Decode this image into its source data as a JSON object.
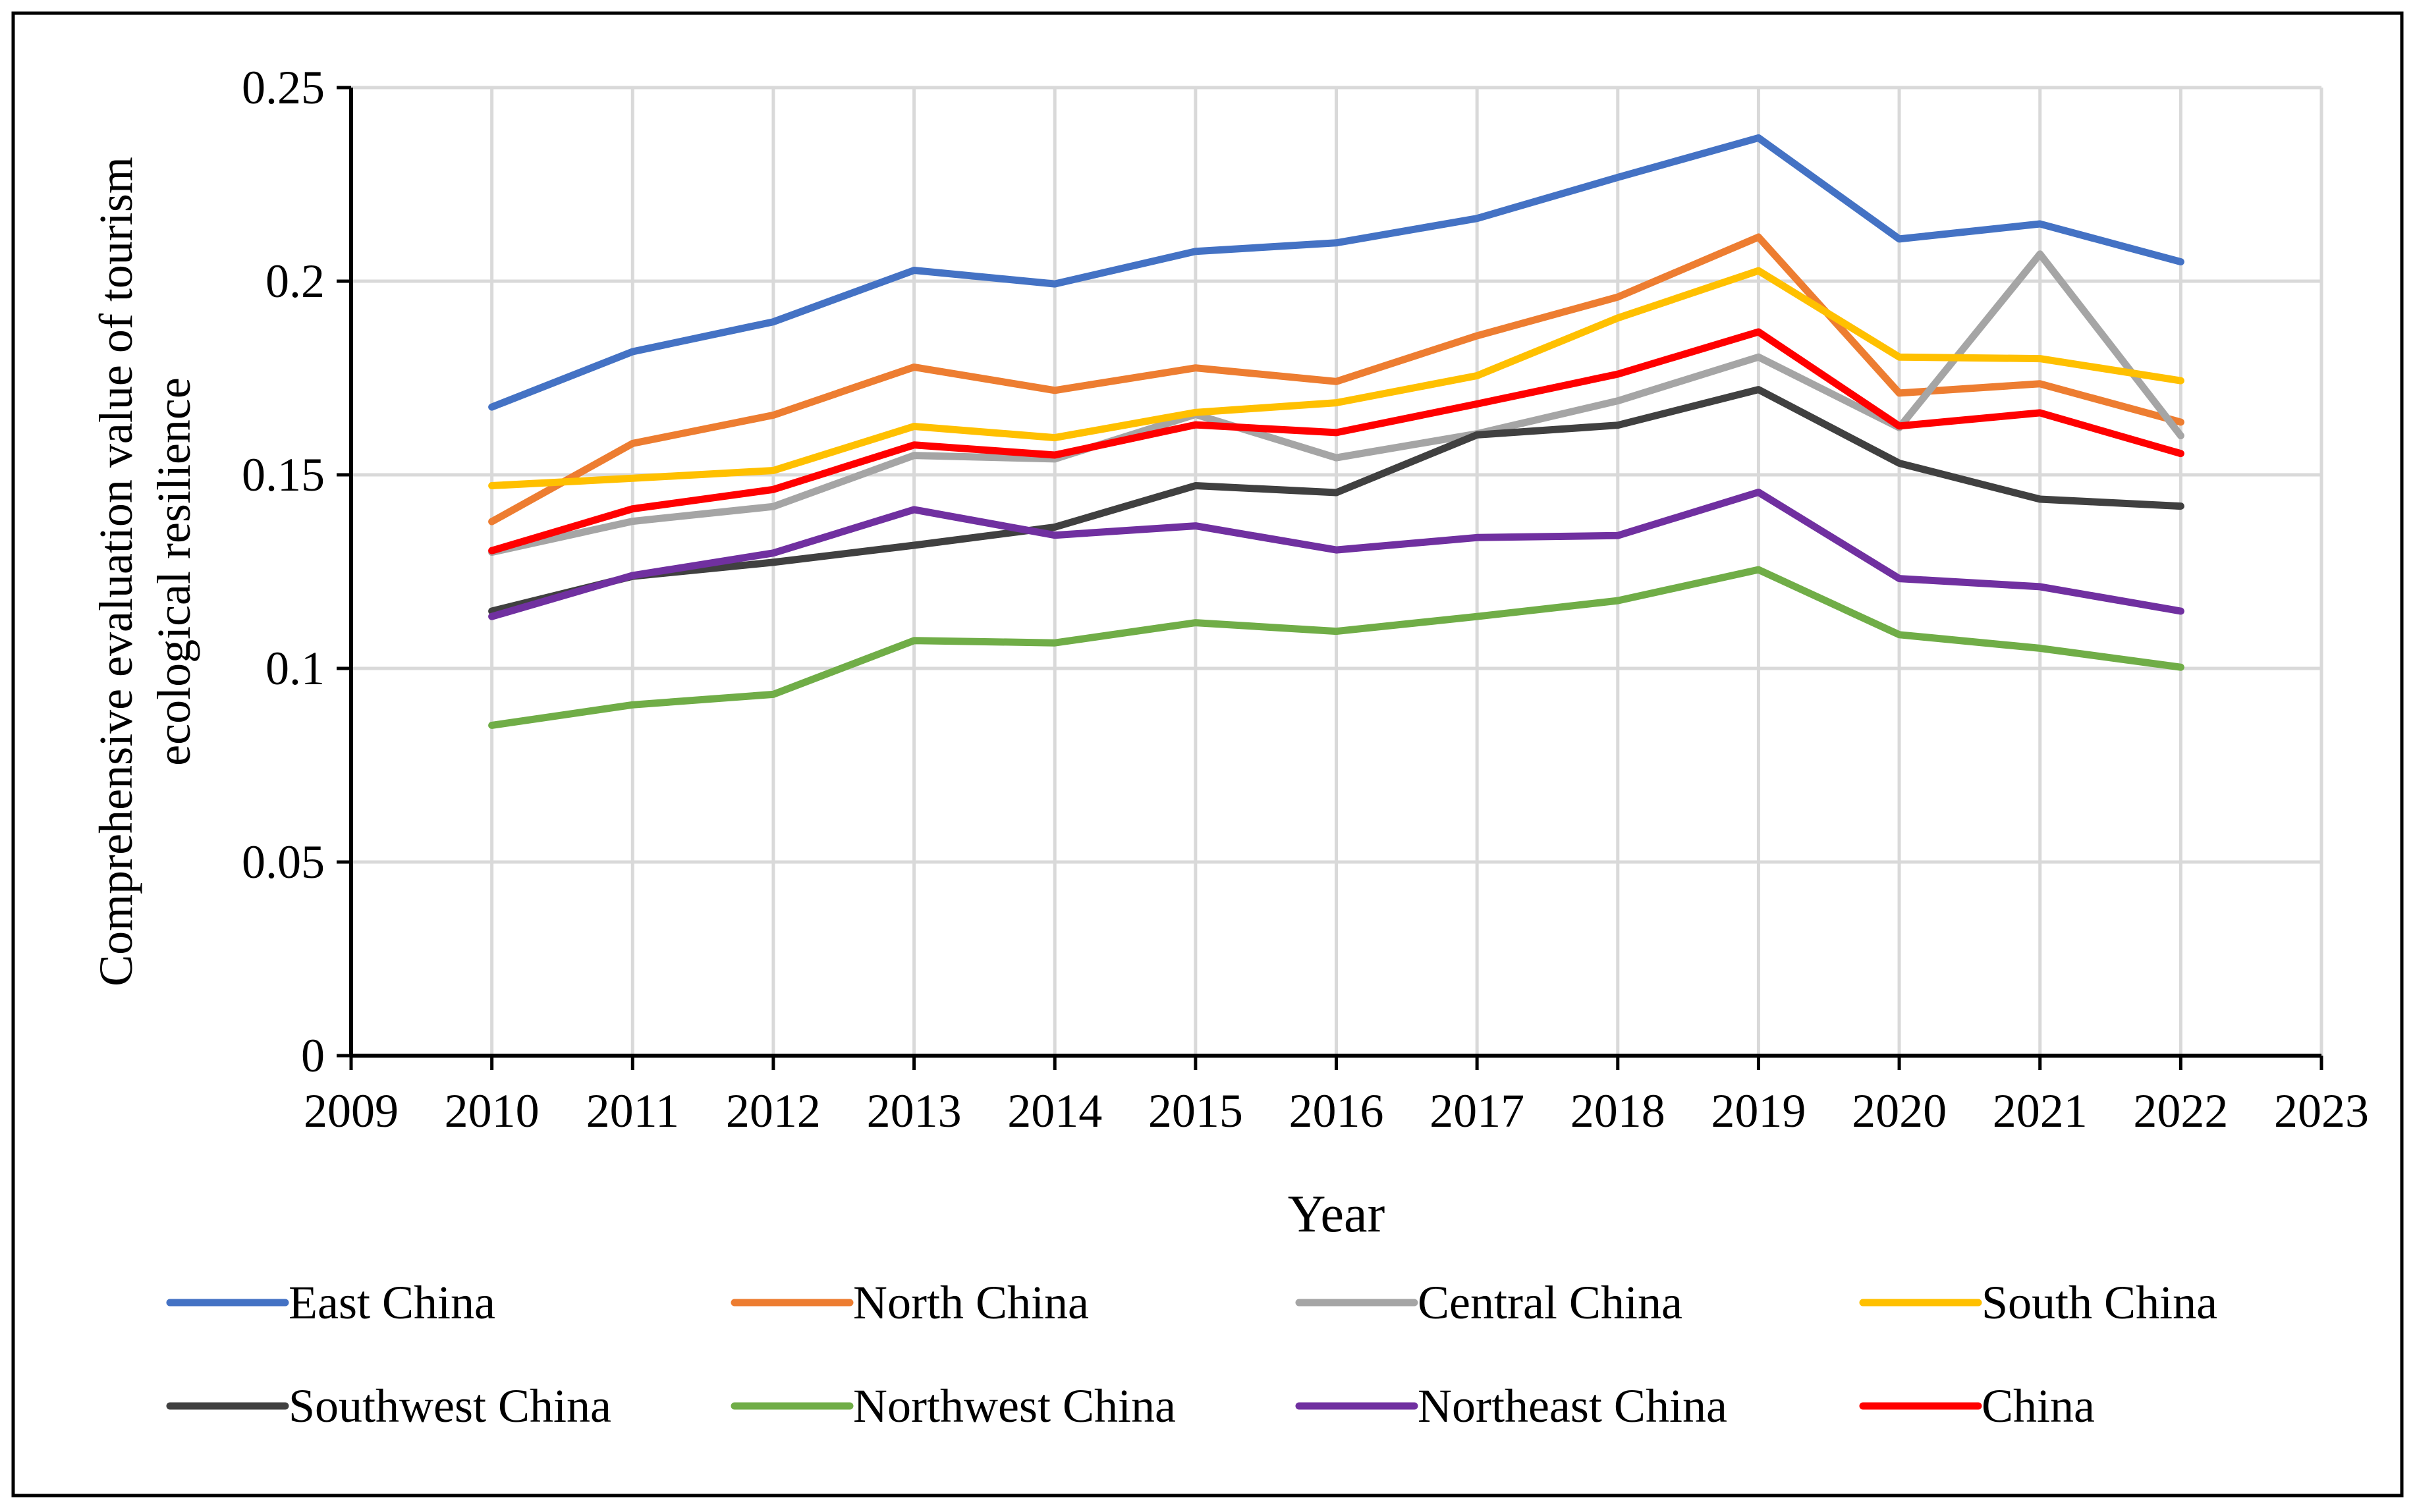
{
  "chart_data": {
    "type": "line",
    "title": "",
    "xlabel": "Year",
    "ylabel_lines": [
      "Comprehensive evaluation value of tourism",
      "ecological resilience"
    ],
    "xlim": [
      2009,
      2023
    ],
    "ylim": [
      0,
      0.25
    ],
    "x_ticks": [
      2009,
      2010,
      2011,
      2012,
      2013,
      2014,
      2015,
      2016,
      2017,
      2018,
      2019,
      2020,
      2021,
      2022,
      2023
    ],
    "x_tick_labels": [
      "2009",
      "2010",
      "2011",
      "2012",
      "2013",
      "2014",
      "2015",
      "2016",
      "2017",
      "2018",
      "2019",
      "2020",
      "2021",
      "2022",
      "2023"
    ],
    "y_ticks": [
      0,
      0.05,
      0.1,
      0.15,
      0.2,
      0.25
    ],
    "y_tick_labels": [
      "0",
      "0.05",
      "0.1",
      "0.15",
      "0.2",
      "0.25"
    ],
    "grid": true,
    "legend_position": "bottom",
    "x": [
      2010,
      2011,
      2012,
      2013,
      2014,
      2015,
      2016,
      2017,
      2018,
      2019,
      2020,
      2021,
      2022
    ],
    "series": [
      {
        "name": "East China",
        "color": "#4472C4",
        "values": [
          0.1675,
          0.1818,
          0.1895,
          0.2028,
          0.1993,
          0.2077,
          0.2099,
          0.2162,
          0.2268,
          0.237,
          0.2109,
          0.2148,
          0.205
        ]
      },
      {
        "name": "North China",
        "color": "#ED7D31",
        "values": [
          0.1379,
          0.1581,
          0.1654,
          0.1778,
          0.1718,
          0.1776,
          0.1741,
          0.1859,
          0.1959,
          0.2114,
          0.1711,
          0.1735,
          0.1636
        ]
      },
      {
        "name": "Central China",
        "color": "#A5A5A5",
        "values": [
          0.13,
          0.138,
          0.1418,
          0.155,
          0.1541,
          0.1656,
          0.1544,
          0.1606,
          0.1691,
          0.1804,
          0.1622,
          0.207,
          0.1601
        ]
      },
      {
        "name": "South China",
        "color": "#FFC000",
        "values": [
          0.1472,
          0.1491,
          0.1511,
          0.1625,
          0.1596,
          0.1661,
          0.1686,
          0.1756,
          0.1905,
          0.2027,
          0.1804,
          0.18,
          0.1743
        ]
      },
      {
        "name": "Southwest China",
        "color": "#404040",
        "values": [
          0.1148,
          0.1238,
          0.1274,
          0.1318,
          0.1365,
          0.1472,
          0.1454,
          0.1603,
          0.1628,
          0.172,
          0.153,
          0.1437,
          0.1419
        ]
      },
      {
        "name": "Northwest China",
        "color": "#70AD47",
        "values": [
          0.0853,
          0.0906,
          0.0933,
          0.1072,
          0.1066,
          0.1118,
          0.1096,
          0.1134,
          0.1175,
          0.1255,
          0.1087,
          0.1052,
          0.1003
        ]
      },
      {
        "name": "Northeast China",
        "color": "#7030A0",
        "values": [
          0.1134,
          0.124,
          0.1298,
          0.141,
          0.1344,
          0.1368,
          0.1306,
          0.1338,
          0.1343,
          0.1455,
          0.1232,
          0.1211,
          0.1148
        ]
      },
      {
        "name": "China",
        "color": "#FF0000",
        "values": [
          0.1304,
          0.1412,
          0.1462,
          0.1577,
          0.1551,
          0.1629,
          0.1609,
          0.1683,
          0.176,
          0.1869,
          0.1626,
          0.166,
          0.1555
        ]
      }
    ]
  }
}
